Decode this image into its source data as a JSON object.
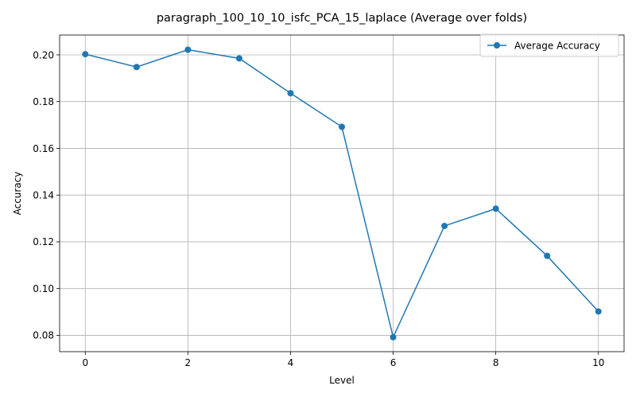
{
  "chart_data": {
    "type": "line",
    "title": "paragraph_100_10_10_isfc_PCA_15_laplace (Average over folds)",
    "xlabel": "Level",
    "ylabel": "Accuracy",
    "x": [
      0,
      1,
      2,
      3,
      4,
      5,
      6,
      7,
      8,
      9,
      10
    ],
    "series": [
      {
        "name": "Average Accuracy",
        "values": [
          0.2003,
          0.1948,
          0.2022,
          0.1985,
          0.1836,
          0.1692,
          0.0792,
          0.1268,
          0.1342,
          0.114,
          0.0902
        ],
        "color": "#1f77b4",
        "marker": "circle"
      }
    ],
    "xlim": [
      -0.5,
      10.5
    ],
    "ylim": [
      0.073,
      0.2085
    ],
    "xticks": [
      0,
      2,
      4,
      6,
      8,
      10
    ],
    "xtick_labels": [
      "0",
      "2",
      "4",
      "6",
      "8",
      "10"
    ],
    "yticks": [
      0.08,
      0.1,
      0.12,
      0.14,
      0.16,
      0.18,
      0.2
    ],
    "ytick_labels": [
      "0.08",
      "0.10",
      "0.12",
      "0.14",
      "0.16",
      "0.18",
      "0.20"
    ],
    "grid": true,
    "legend_position": "top-right"
  }
}
